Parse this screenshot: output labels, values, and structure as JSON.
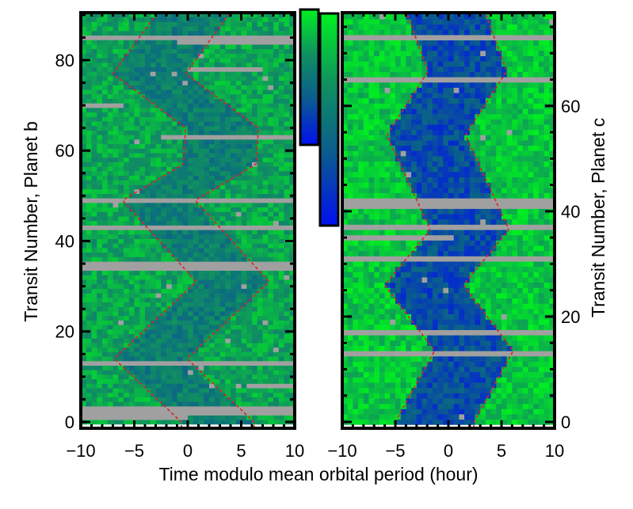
{
  "chart_data": [
    {
      "type": "heatmap",
      "panel": "left",
      "ylabel": "Transit Number, Planet b",
      "xlim": [
        -10,
        10
      ],
      "ylim": [
        -1.4,
        90.5
      ],
      "x_ticks": [
        "−10",
        "−5",
        "0",
        "5",
        "10"
      ],
      "y_ticks": [
        "0",
        "20",
        "40",
        "60",
        "80"
      ],
      "x_tick_values": [
        -10,
        -5,
        0,
        5,
        10
      ],
      "y_tick_values": [
        0,
        20,
        40,
        60,
        80
      ],
      "columns": 40,
      "rows": 92,
      "transit_center_knots": [
        [
          0,
          2.8
        ],
        [
          14,
          -3.5
        ],
        [
          31,
          4.2
        ],
        [
          49,
          -2.7
        ],
        [
          57,
          3.0
        ],
        [
          65,
          3.2
        ],
        [
          77,
          -3.6
        ],
        [
          91,
          0.7
        ]
      ],
      "transit_half_width_hours": 3.4,
      "missing_rows": [
        [
          85,
          -10,
          10
        ],
        [
          84,
          -1,
          10
        ],
        [
          78,
          0,
          7
        ],
        [
          70,
          -10,
          -6
        ],
        [
          63,
          -2.5,
          10
        ],
        [
          49,
          -10,
          10
        ],
        [
          43,
          -10,
          10
        ],
        [
          35,
          -10,
          10
        ],
        [
          34,
          -10,
          10
        ],
        [
          13,
          -10,
          10
        ],
        [
          8,
          5.5,
          10
        ],
        [
          3,
          -10,
          10
        ],
        [
          2,
          -10,
          10
        ],
        [
          1,
          -10,
          0
        ]
      ],
      "out_of_transit_level": [
        0.6,
        0.88
      ],
      "in_transit_level": [
        0.42,
        0.68
      ],
      "boundary_line_color": "#e02020"
    },
    {
      "type": "heatmap",
      "panel": "right",
      "ylabel": "Transit Number, Planet c",
      "xlim": [
        -10,
        10
      ],
      "ylim": [
        -1.2,
        77.7
      ],
      "x_ticks": [
        "−10",
        "−5",
        "0",
        "5",
        "10"
      ],
      "y_ticks": [
        "0",
        "20",
        "40",
        "60"
      ],
      "x_tick_values": [
        -10,
        -5,
        0,
        5,
        10
      ],
      "y_tick_values": [
        0,
        20,
        40,
        60
      ],
      "columns": 40,
      "rows": 79,
      "transit_center_knots": [
        [
          0,
          -1.3
        ],
        [
          13.5,
          2.4
        ],
        [
          26,
          -2.3
        ],
        [
          36.5,
          2.0
        ],
        [
          54.5,
          -2.1
        ],
        [
          66.6,
          1.8
        ],
        [
          78,
          -0.3
        ]
      ],
      "transit_half_width_hours": 3.7,
      "missing_rows": [
        [
          73,
          -10,
          10
        ],
        [
          65,
          -10,
          10
        ],
        [
          42,
          -10,
          10
        ],
        [
          41,
          -10,
          10
        ],
        [
          37,
          -10,
          10
        ],
        [
          35,
          -10,
          0.5
        ],
        [
          31,
          -10,
          10
        ],
        [
          17,
          -10,
          10
        ],
        [
          13,
          -10,
          10
        ]
      ],
      "out_of_transit_level": [
        0.72,
        1.0
      ],
      "in_transit_level": [
        0.12,
        0.42
      ],
      "boundary_line_color": "#e02020"
    }
  ],
  "shared": {
    "xlabel": "Time modulo mean orbital period (hour)",
    "colormap": [
      "#0010f0",
      "#0a5a90",
      "#109060",
      "#00f020"
    ],
    "missing_color": "#a0a0a0",
    "colorbars": 2
  }
}
